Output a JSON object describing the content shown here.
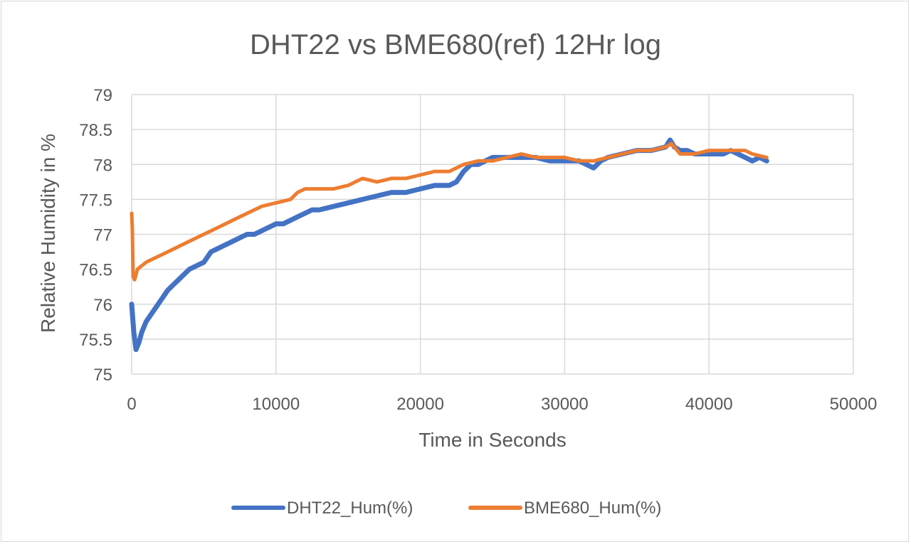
{
  "chart_data": {
    "type": "line",
    "title": "DHT22 vs BME680(ref) 12Hr log",
    "xlabel": "Time in Seconds",
    "ylabel": "Relative Humidity in %",
    "xlim": [
      0,
      50000
    ],
    "ylim": [
      75,
      79
    ],
    "x_ticks": [
      0,
      10000,
      20000,
      30000,
      40000,
      50000
    ],
    "y_ticks": [
      75,
      75.5,
      76,
      76.5,
      77,
      77.5,
      78,
      78.5,
      79
    ],
    "grid": true,
    "legend_position": "bottom",
    "series": [
      {
        "name": "DHT22_Hum(%)",
        "color": "#4472C4",
        "x": [
          0,
          150,
          300,
          500,
          700,
          1000,
          1500,
          2000,
          2500,
          3000,
          3500,
          4000,
          4500,
          5000,
          5500,
          6000,
          6500,
          7000,
          7500,
          8000,
          8500,
          9000,
          9500,
          10000,
          10500,
          11000,
          11500,
          12000,
          12500,
          13000,
          14000,
          15000,
          16000,
          17000,
          18000,
          19000,
          20000,
          21000,
          22000,
          22500,
          23000,
          23500,
          24000,
          24500,
          25000,
          26000,
          27000,
          28000,
          29000,
          30000,
          31000,
          31500,
          32000,
          32500,
          33000,
          34000,
          35000,
          36000,
          37000,
          37300,
          37600,
          38000,
          38500,
          39000,
          40000,
          41000,
          41500,
          42000,
          42500,
          43000,
          43500,
          44000
        ],
        "values": [
          76.0,
          75.6,
          75.35,
          75.45,
          75.6,
          75.75,
          75.9,
          76.05,
          76.2,
          76.3,
          76.4,
          76.5,
          76.55,
          76.6,
          76.75,
          76.8,
          76.85,
          76.9,
          76.95,
          77.0,
          77.0,
          77.05,
          77.1,
          77.15,
          77.15,
          77.2,
          77.25,
          77.3,
          77.35,
          77.35,
          77.4,
          77.45,
          77.5,
          77.55,
          77.6,
          77.6,
          77.65,
          77.7,
          77.7,
          77.75,
          77.9,
          78.0,
          78.0,
          78.05,
          78.1,
          78.1,
          78.1,
          78.1,
          78.05,
          78.05,
          78.05,
          78.0,
          77.95,
          78.05,
          78.1,
          78.15,
          78.2,
          78.2,
          78.25,
          78.35,
          78.25,
          78.2,
          78.2,
          78.15,
          78.15,
          78.15,
          78.2,
          78.15,
          78.1,
          78.05,
          78.1,
          78.05
        ]
      },
      {
        "name": "BME680_Hum(%)",
        "color": "#ED7D31",
        "x": [
          0,
          50,
          100,
          200,
          400,
          700,
          1000,
          1500,
          2000,
          3000,
          4000,
          5000,
          6000,
          7000,
          8000,
          9000,
          10000,
          11000,
          11500,
          12000,
          13000,
          14000,
          15000,
          15500,
          16000,
          17000,
          18000,
          19000,
          20000,
          21000,
          22000,
          23000,
          24000,
          25000,
          26000,
          27000,
          28000,
          29000,
          30000,
          31000,
          32000,
          33000,
          34000,
          35000,
          36000,
          37000,
          37400,
          38000,
          39000,
          40000,
          41000,
          42000,
          42500,
          43000,
          44000
        ],
        "values": [
          77.3,
          77.05,
          76.4,
          76.35,
          76.5,
          76.55,
          76.6,
          76.65,
          76.7,
          76.8,
          76.9,
          77.0,
          77.1,
          77.2,
          77.3,
          77.4,
          77.45,
          77.5,
          77.6,
          77.65,
          77.65,
          77.65,
          77.7,
          77.75,
          77.8,
          77.75,
          77.8,
          77.8,
          77.85,
          77.9,
          77.9,
          78.0,
          78.05,
          78.05,
          78.1,
          78.15,
          78.1,
          78.1,
          78.1,
          78.05,
          78.05,
          78.1,
          78.15,
          78.2,
          78.2,
          78.25,
          78.3,
          78.15,
          78.15,
          78.2,
          78.2,
          78.2,
          78.2,
          78.15,
          78.1
        ]
      }
    ]
  }
}
